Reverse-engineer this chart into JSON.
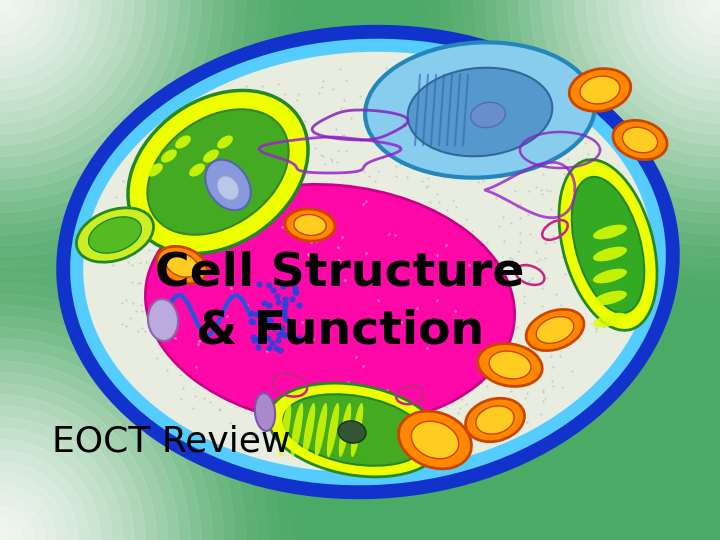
{
  "title_line1": "Cell Structure",
  "title_line2": "& Function",
  "subtitle": "EOCT Review",
  "title_fontsize": 34,
  "subtitle_fontsize": 26,
  "bg_color": "#4aaa66",
  "cell_membrane_color": "#2255ee",
  "cell_membrane_inner": "#55ccff",
  "cell_cytoplasm": "#e8f0e0",
  "nucleus_color": "#ff10a0",
  "text_color": "#000000"
}
